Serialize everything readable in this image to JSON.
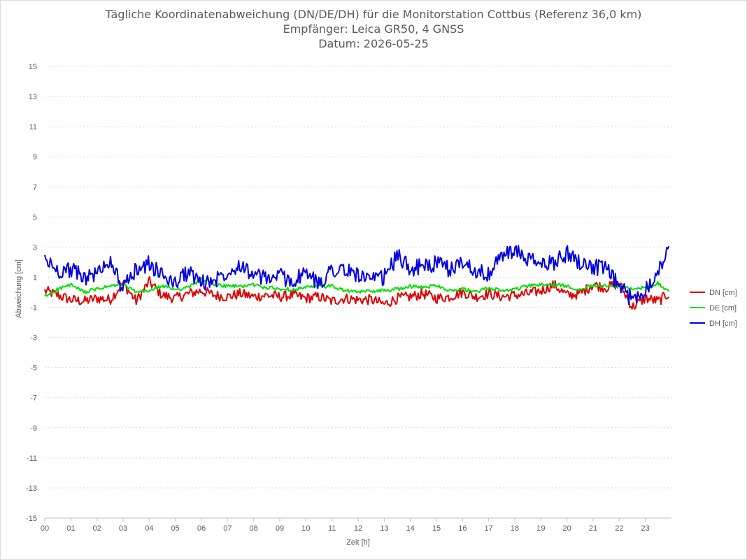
{
  "chart_data": {
    "type": "line",
    "title": "Tägliche Koordinatenabweichung (DN/DE/DH) für die Monitorstation Cottbus (Referenz 36,0 km)",
    "subtitle": "Empfänger: Leica GR50, 4 GNSS",
    "subtitle2": "Datum: 2026-05-25",
    "xlabel": "Zeit [h]",
    "ylabel": "Abweichung [cm]",
    "xlim": [
      0,
      24
    ],
    "ylim": [
      -15,
      15
    ],
    "x_ticks": [
      "00",
      "01",
      "02",
      "03",
      "04",
      "05",
      "06",
      "07",
      "08",
      "09",
      "10",
      "11",
      "12",
      "13",
      "14",
      "15",
      "16",
      "17",
      "18",
      "19",
      "20",
      "21",
      "22",
      "23"
    ],
    "y_ticks": [
      15,
      13,
      11,
      9,
      7,
      5,
      3,
      1,
      -1,
      -3,
      -5,
      -7,
      -9,
      -11,
      -13,
      -15
    ],
    "grid": true,
    "legend_position": "right",
    "x": [
      0.0,
      0.5,
      1.0,
      1.5,
      2.0,
      2.5,
      3.0,
      3.5,
      4.0,
      4.5,
      5.0,
      5.5,
      6.0,
      6.5,
      7.0,
      7.5,
      8.0,
      8.5,
      9.0,
      9.5,
      10.0,
      10.5,
      11.0,
      11.5,
      12.0,
      12.5,
      13.0,
      13.5,
      14.0,
      14.5,
      15.0,
      15.5,
      16.0,
      16.5,
      17.0,
      17.5,
      18.0,
      18.5,
      19.0,
      19.5,
      20.0,
      20.5,
      21.0,
      21.5,
      22.0,
      22.5,
      23.0,
      23.5,
      23.9
    ],
    "series": [
      {
        "name": "DN [cm]",
        "color": "#e00000",
        "values": [
          0.1,
          -0.2,
          -0.5,
          -0.6,
          -0.4,
          -0.5,
          0.6,
          -0.6,
          0.7,
          -0.2,
          -0.4,
          -0.1,
          0.1,
          -0.2,
          -0.3,
          -0.1,
          -0.3,
          -0.2,
          -0.3,
          -0.2,
          -0.4,
          -0.3,
          -0.6,
          -0.4,
          -0.5,
          -0.5,
          -0.8,
          -0.4,
          -0.3,
          -0.1,
          -0.4,
          -0.3,
          0.0,
          -0.3,
          -0.1,
          -0.3,
          -0.2,
          -0.1,
          0.1,
          0.5,
          -0.2,
          -0.1,
          0.5,
          0.3,
          0.6,
          -1.0,
          -0.4,
          -0.6,
          -0.1
        ]
      },
      {
        "name": "DE [cm]",
        "color": "#00e000",
        "values": [
          -0.3,
          0.2,
          0.5,
          0.0,
          0.2,
          0.4,
          0.5,
          0.0,
          0.1,
          0.4,
          0.2,
          0.3,
          0.9,
          0.5,
          0.4,
          0.4,
          0.5,
          0.3,
          0.2,
          0.2,
          0.3,
          0.4,
          0.4,
          0.1,
          0.0,
          0.1,
          0.1,
          0.2,
          0.4,
          0.3,
          0.5,
          0.1,
          0.2,
          0.0,
          0.3,
          0.1,
          0.2,
          0.4,
          0.5,
          0.5,
          0.4,
          0.2,
          0.5,
          0.4,
          0.4,
          0.2,
          0.3,
          0.6,
          0.0
        ]
      },
      {
        "name": "DH [cm]",
        "color": "#0000e0",
        "values": [
          2.2,
          1.4,
          1.5,
          1.0,
          1.2,
          2.2,
          0.2,
          1.5,
          1.9,
          1.1,
          0.6,
          1.4,
          0.6,
          0.8,
          1.4,
          1.9,
          1.1,
          0.9,
          1.1,
          0.7,
          1.3,
          0.5,
          1.6,
          1.4,
          1.2,
          0.7,
          1.0,
          2.4,
          1.6,
          1.7,
          1.9,
          1.5,
          2.0,
          1.5,
          1.1,
          2.5,
          2.7,
          2.2,
          1.8,
          2.0,
          2.6,
          2.0,
          1.7,
          1.5,
          0.4,
          -0.5,
          0.2,
          1.5,
          2.8
        ]
      }
    ]
  }
}
